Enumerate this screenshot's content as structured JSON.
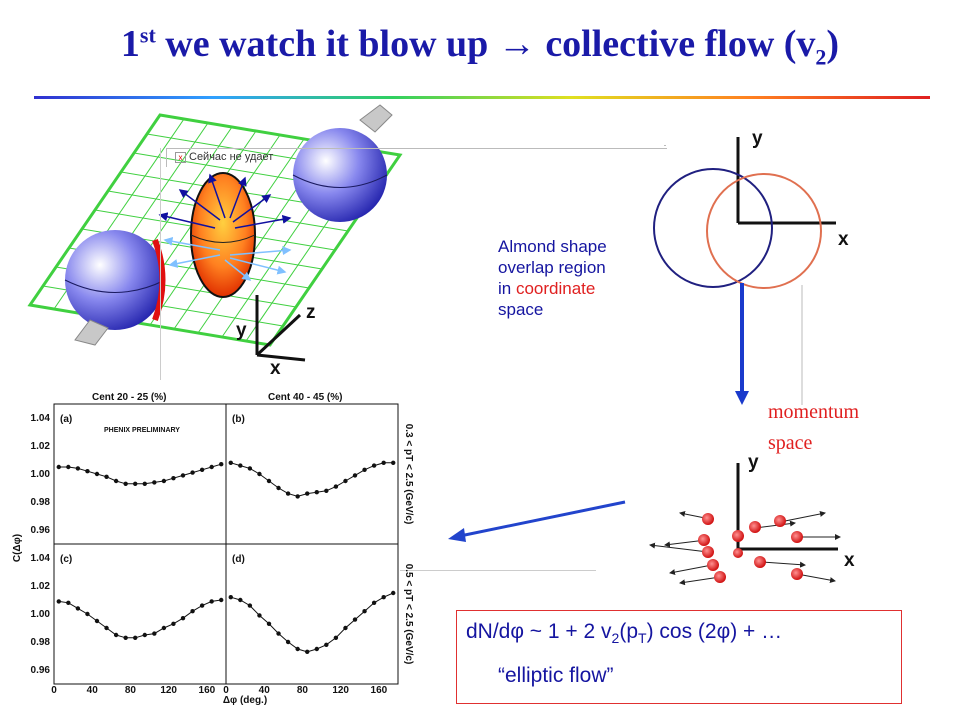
{
  "title": {
    "pre": "1",
    "sup": "st",
    "main": " we watch it blow up → collective flow (v",
    "sub": "2",
    "post": ")"
  },
  "popup_text": "Сейчас не удает",
  "axes3d": {
    "x": "x",
    "y": "y",
    "z": "z"
  },
  "almond_text": {
    "line1": "Almond shape",
    "line2": "overlap region",
    "line3": "in ",
    "line3_red": "coordinate",
    "line4": "space"
  },
  "coord_axes": {
    "x": "x",
    "y": "y"
  },
  "momentum_axes": {
    "x": "x",
    "y": "y"
  },
  "momentum_label": {
    "line1": "momentum",
    "line2": "space"
  },
  "formula": {
    "text1": "dN/dφ ~ 1 + 2 v",
    "sub1": "2",
    "text2": "(p",
    "sub2": "T",
    "text3": ") cos (2φ) + …"
  },
  "elliptic_flow": "“elliptic flow”",
  "plot": {
    "header_left": "Cent 20 - 25 (%)",
    "header_right": "Cent 40 - 45 (%)",
    "watermark": "PHENIX PRELIMINARY",
    "panel_a": "(a)",
    "panel_b": "(b)",
    "panel_c": "(c)",
    "panel_d": "(d)",
    "ylabel": "C(Δφ)",
    "xlabel": "Δφ (deg.)",
    "right_top": "0.3 < pT < 2.5 (GeV/c)",
    "right_bottom": "0.5 < pT < 2.5 (GeV/c)",
    "yticks_top": [
      "1.04",
      "1.02",
      "1.00",
      "0.98",
      "0.96"
    ],
    "yticks_bottom": [
      "1.04",
      "1.02",
      "1.00",
      "0.98",
      "0.96"
    ],
    "xticks": [
      "0",
      "40",
      "80",
      "120",
      "160",
      "0",
      "40",
      "80",
      "120",
      "160"
    ]
  },
  "chart_data": [
    {
      "type": "scatter",
      "panel": "a",
      "xlim": [
        0,
        180
      ],
      "ylim": [
        0.95,
        1.05
      ],
      "x": [
        5,
        15,
        25,
        35,
        45,
        55,
        65,
        75,
        85,
        95,
        105,
        115,
        125,
        135,
        145,
        155,
        165,
        175
      ],
      "y": [
        1.005,
        1.005,
        1.004,
        1.002,
        1.0,
        0.998,
        0.995,
        0.993,
        0.993,
        0.993,
        0.994,
        0.995,
        0.997,
        0.999,
        1.001,
        1.003,
        1.005,
        1.007
      ]
    },
    {
      "type": "scatter",
      "panel": "b",
      "xlim": [
        0,
        180
      ],
      "ylim": [
        0.95,
        1.05
      ],
      "x": [
        5,
        15,
        25,
        35,
        45,
        55,
        65,
        75,
        85,
        95,
        105,
        115,
        125,
        135,
        145,
        155,
        165,
        175
      ],
      "y": [
        1.008,
        1.006,
        1.004,
        1.0,
        0.995,
        0.99,
        0.986,
        0.984,
        0.986,
        0.987,
        0.988,
        0.991,
        0.995,
        0.999,
        1.003,
        1.006,
        1.008,
        1.008
      ]
    },
    {
      "type": "scatter",
      "panel": "c",
      "xlim": [
        0,
        180
      ],
      "ylim": [
        0.95,
        1.05
      ],
      "x": [
        5,
        15,
        25,
        35,
        45,
        55,
        65,
        75,
        85,
        95,
        105,
        115,
        125,
        135,
        145,
        155,
        165,
        175
      ],
      "y": [
        1.009,
        1.008,
        1.004,
        1.0,
        0.995,
        0.99,
        0.985,
        0.983,
        0.983,
        0.985,
        0.986,
        0.99,
        0.993,
        0.997,
        1.002,
        1.006,
        1.009,
        1.01
      ]
    },
    {
      "type": "scatter",
      "panel": "d",
      "xlim": [
        0,
        180
      ],
      "ylim": [
        0.95,
        1.05
      ],
      "x": [
        5,
        15,
        25,
        35,
        45,
        55,
        65,
        75,
        85,
        95,
        105,
        115,
        125,
        135,
        145,
        155,
        165,
        175
      ],
      "y": [
        1.012,
        1.01,
        1.006,
        0.999,
        0.993,
        0.986,
        0.98,
        0.975,
        0.973,
        0.975,
        0.978,
        0.983,
        0.99,
        0.996,
        1.002,
        1.008,
        1.012,
        1.015
      ]
    }
  ]
}
